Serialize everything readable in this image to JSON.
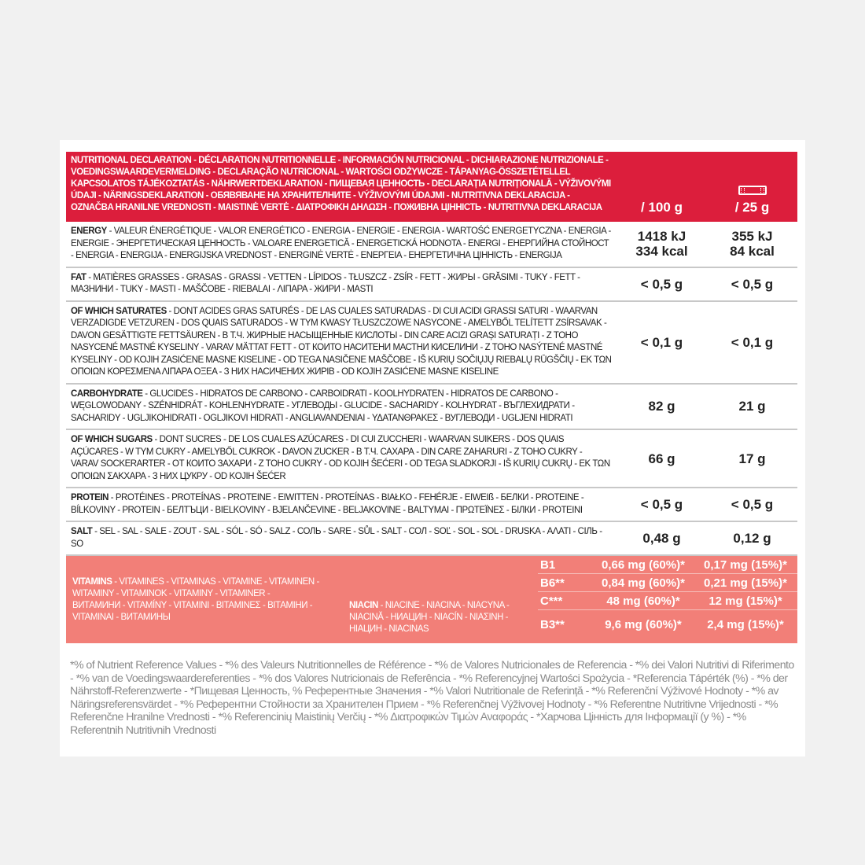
{
  "header": {
    "label": "NUTRITIONAL DECLARATION - DÉCLARATION NUTRITIONNELLE - INFORMACIÓN NUTRICIONAL - DICHIARAZIONE NUTRIZIONALE - VOEDINGSWAARDEVERMELDING - DECLARAÇÃO NUTRICIONAL - WARTOŚCI ODŻYWCZE - TÁPANYAG-ÖSSZETÉTELLEL KAPCSOLATOS TÁJÉKOZTATÁS - NÄHRWERTDEKLARATION - ПИЩЕВАЯ ЦЕННОСТЬ - DECLARAȚIA NUTRIȚIONALĂ - VÝŽIVOVÝMI ÚDAJI - NÄRINGSDEKLARATION - ОБЯВЯВАНЕ НА ХРАНИТЕЛНИТЕ - VÝŽIVOVÝMI ÚDAJMI - NUTRITIVNA DEKLARACIJA - OZNAČBA HRANILNE VREDNOSTI - MAISTINĖ VERTĖ - ΔΙΑΤΡΟΦΙΚΗ ΔΗΛΩΣΗ - ПОЖИВНА ЦІННІСТЬ - NUTRITIVNA DEKLARACIJA",
    "col_100g": "/ 100 g",
    "col_25g": "/ 25 g",
    "bar_icon": "energy-bar-icon"
  },
  "rows": [
    {
      "name": "ENERGY",
      "rest": " - VALEUR ÉNERGÉTIQUE - VALOR ENERGÉTICO - ENERGIA - ENERGIE - ENERGIA - WARTOŚĆ ENERGETYCZNA - ENERGIA - ENERGIE - ЭНЕРГЕТИЧЕСКАЯ ЦЕННОСТЬ - VALOARE ENERGETICĂ - ENERGETICKÁ HODNOTA - ENERGI - ЕНЕРГИЙНА СТОЙНОСТ - ENERGIA - ENERGIJA - ENERGIJSKA VREDNOST - ENERGINĖ VERTĖ - ΕΝΕΡΓΕΙΑ - ЕНЕРГЕТИЧНА ЦІННІСТЬ - ENERGIJA",
      "v100": "1418 kJ\n334 kcal",
      "v25": "355 kJ\n84 kcal"
    },
    {
      "name": "FAT",
      "rest": " - MATIÈRES GRASSES - GRASAS - GRASSI - VETTEN - LÍPIDOS - TŁUSZCZ - ZSÍR - FETT - ЖИРЫ - GRĂSIMI - TUKY - FETT - МАЗНИНИ - TUKY - MASTI - MAŠČOBE - RIEBALAI - ΛΙΠΑΡΑ - ЖИРИ - MASTI",
      "v100": "< 0,5 g",
      "v25": "< 0,5 g"
    },
    {
      "name": "OF WHICH SATURATES",
      "rest": " - DONT ACIDES GRAS SATURÉS - DE LAS CUALES SATURADAS - DI CUI ACIDI GRASSI SATURI - WAARVAN VERZADIGDE VETZUREN - DOS QUAIS SATURADOS - W TYM KWASY TŁUSZCZOWE NASYCONE - AMELYBŐL TELÍTETT ZSÍRSAVAK - DAVON GESÄTTIGTE FETTSÄUREN - В Т.Ч. ЖИРНЫЕ НАСЫЩЕННЫЕ КИСЛОТЫ - DIN CARE ACIZI GRAȘI SATURAȚI - Z TOHO NASYCENÉ MASTNÉ KYSELINY - VARAV MÄTTAT FETT - ОТ КОИТО НАСИТЕНИ МАСТНИ КИСЕЛИНИ - Z TOHO NASÝTENÉ MASTNÉ KYSELINY - OD KOJIH ZASIĆENE MASNE KISELINE - OD TEGA NASIČENE MAŠČOBE - IŠ KURIŲ SOČIŲJŲ RIEBALŲ RŪGŠČIŲ - ΕΚ ΤΩΝ ΟΠΟΙΩΝ ΚΟΡΕΣΜΕΝΑ ΛΙΠΑΡΑ ΟΞΕΑ - З НИХ НАСИЧЕНИХ ЖИРІВ - OD KOJIH ZASIĆENE MASNE KISELINE",
      "v100": "< 0,1 g",
      "v25": "< 0,1 g"
    },
    {
      "name": "CARBOHYDRATE",
      "rest": " - GLUCIDES - HIDRATOS DE CARBONO - CARBOIDRATI - KOOLHYDRATEN - HIDRATOS DE CARBONO - WĘGLOWODANY - SZÉNHIDRÁT - KOHLENHYDRATE - УГЛЕВОДЫ - GLUCIDE - SACHARIDY - KOLHYDRAT - ВЪГЛЕХИДРАТИ - SACHARIDY - UGLJIKOHIDRATI - OGLJIKOVI HIDRATI - ANGLIAVANDENIAI - ΥΔΑΤΑΝΘΡΑΚΕΣ - ВУГЛЕВОДИ - UGLJENI HIDRATI",
      "v100": "82 g",
      "v25": "21 g"
    },
    {
      "name": "OF WHICH SUGARS",
      "rest": " - DONT SUCRES - DE LOS CUALES AZÚCARES - DI CUI ZUCCHERI - WAARVAN SUIKERS - DOS QUAIS AÇÚCARES - W TYM CUKRY - AMELYBŐL CUKROK - DAVON ZUCKER - В Т.Ч. САХАРА - DIN CARE ZAHARURI - Z TOHO CUKRY - VARAV SOCKERARTER - ОТ КОИТО ЗАХАРИ - Z TOHO CUKRY - OD KOJIH ŠEĆERI - OD TEGA SLADKORJI - IŠ KURIŲ CUKRŲ - ΕΚ ΤΩΝ ΟΠΟΙΩΝ ΣΑΚΧΑΡΑ - З НИХ ЦУКРУ - OD KOJIH ŠEĆER",
      "v100": "66 g",
      "v25": "17 g"
    },
    {
      "name": "PROTEIN",
      "rest": " - PROTÉINES - PROTEÍNAS - PROTEINE - EIWITTEN - PROTEÍNAS - BIAŁKO - FEHÉRJE - EIWEIß - БЕЛКИ - PROTEINE - BÍLKOVINY - PROTEIN - БЕЛТЪЦИ - BIELKOVINY - BJELANČEVINE - BELJAKOVINE - BALTYMAI - ΠΡΩΤΕΪΝΕΣ - БІЛКИ - PROTEINI",
      "v100": "< 0,5 g",
      "v25": "< 0,5 g"
    },
    {
      "name": "SALT",
      "rest": " - SEL - SAL - SALE - ZOUT - SAL - SÓL - SÓ - SALZ - СОЛЬ - SARE - SŮL - SALT - СОЛ - SOĽ - SOL - SOL - DRUSKA - ΑΛΑΤΙ - СІЛЬ - SO",
      "v100": "0,48 g",
      "v25": "0,12 g"
    }
  ],
  "vitamins": {
    "name": "VITAMINS",
    "rest": " - VITAMINES - VITAMINAS - VITAMINE - VITAMINEN - WITAMINY - VITAMINOK - VITAMINY - VITAMINER - ВИТАМИНИ - VITAMÍNY - VITAMINI - ΒΙΤΑΜΙΝΕΣ - ВІТАМІНИ - VITAMINAI - ВИТАМИНЫ",
    "niacin_name": "NIACIN",
    "niacin_rest": " - NIACINE - NIACINA - NIACYNA - NIACINĂ - НИАЦИН - NIACÍN - ΝΙΑΣΙΝΗ - НІАЦИН - NIACINAS",
    "items": [
      {
        "name": "B1",
        "v100": "0,66 mg (60%)*",
        "v25": "0,17 mg (15%)*"
      },
      {
        "name": "B6**",
        "v100": "0,84 mg (60%)*",
        "v25": "0,21 mg (15%)*"
      },
      {
        "name": "C***",
        "v100": "48 mg (60%)*",
        "v25": "12 mg (15%)*"
      },
      {
        "name": "B3**",
        "v100": "9,6 mg (60%)*",
        "v25": "2,4 mg (15%)*"
      }
    ]
  },
  "footnote": "*% of Nutrient Reference Values - *% des Valeurs Nutritionnelles de Référence - *% de Valores Nutricionales de Referencia - *% dei Valori Nutritivi di Riferimento - *% van de Voedingswaardereferenties - *% dos Valores Nutricionais de Referência - *% Referencyjnej Wartości Spożycia - *Referencia Tápérték (%) - *% der Nährstoff-Referenzwerte - *Пищевая Ценность, % Референтные Значения - *% Valori Nutritionale de Referință - *% Referenční Výživové Hodnoty - *% av Näringsreferensvärdet - *% Референтни Стойности за Хранителен Прием - *% Referenčnej Výživovej Hodnoty - *% Referentne Nutritivne Vrijednosti - *% Referenčne Hranilne Vrednosti - *% Referencinių Maistinių Verčių - *% Διατροφικών Τιμών Αναφοράς - *Харчова Цінність для Інформації (у %) - *% Referentnih Nutritivnih Vrednosti",
  "colors": {
    "header_red": "#dc1e3c",
    "vitamin_salmon": "#f27f78",
    "footnote_grey": "#8a8a8a"
  }
}
